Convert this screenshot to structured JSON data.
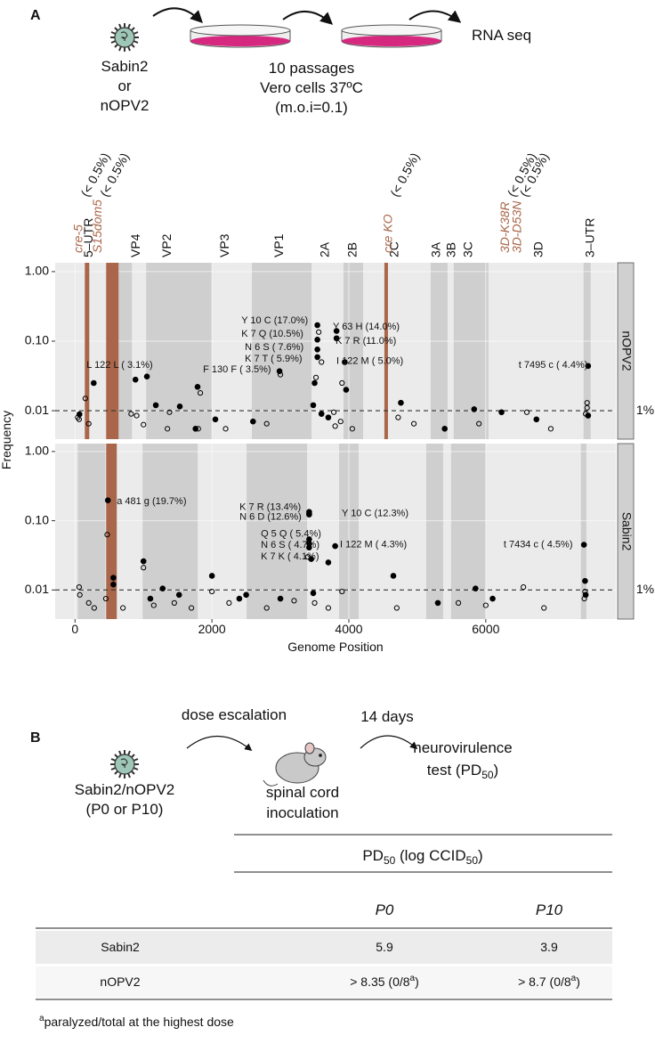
{
  "panel_a": {
    "letter": "A",
    "virus_lines": [
      "Sabin2",
      "or",
      "nOPV2"
    ],
    "step_end": "RNA seq",
    "passage_lines": [
      "10 passages",
      "Vero cells 37ºC",
      "(m.o.i=0.1)"
    ],
    "y_label": "Frequency",
    "x_label": "Genome Position",
    "gene_labels": [
      {
        "label": "5–UTR",
        "x": 208
      },
      {
        "label": "VP4",
        "x": 896
      },
      {
        "label": "VP2",
        "x": 1350
      },
      {
        "label": "VP3",
        "x": 2195
      },
      {
        "label": "VP1",
        "x": 2987
      },
      {
        "label": "2A",
        "x": 3662
      },
      {
        "label": "2B",
        "x": 4065
      },
      {
        "label": "2C",
        "x": 4675
      },
      {
        "label": "3A",
        "x": 5286
      },
      {
        "label": "3B",
        "x": 5506
      },
      {
        "label": "3C",
        "x": 5753
      },
      {
        "label": "3D",
        "x": 6779
      },
      {
        "label": "3–UTR",
        "x": 7532
      }
    ],
    "modifications": [
      {
        "label": "cre-5",
        "note": "(< 0.5%)",
        "x": 60
      },
      {
        "label": "S15dom5",
        "note": "(< 0.5%)",
        "x": 340
      },
      {
        "label": "cre KO",
        "note": "(< 0.5%)",
        "x": 4580
      },
      {
        "label": "3D-K38R",
        "note": "(< 0.5%)",
        "x": 6290
      },
      {
        "label": "3D-D53N",
        "note": "(< 0.5%)",
        "x": 6470
      }
    ]
  },
  "chart_data": [
    {
      "type": "scatter",
      "facet_label": "nOPV2",
      "log_y": true,
      "xlim": [
        -290,
        7900
      ],
      "ylim": [
        0.0039,
        1.34
      ],
      "xticks": [
        0,
        2000,
        4000,
        6000
      ],
      "yticks": [
        {
          "value": 1,
          "label": "1.00"
        },
        {
          "value": 0.1,
          "label": "0.10"
        },
        {
          "value": 0.01,
          "label": "0.01"
        }
      ],
      "threshold": {
        "value": 0.01,
        "label": "1%"
      },
      "bands": [
        [
          455,
          831
        ],
        [
          1039,
          2000
        ],
        [
          2584,
          3455
        ],
        [
          3922,
          4208
        ],
        [
          5195,
          5442
        ],
        [
          5532,
          6039
        ],
        [
          7429,
          7532
        ]
      ],
      "highlight_bands": [
        [
          143,
          208
        ],
        [
          455,
          636
        ],
        [
          4519,
          4571
        ]
      ],
      "highlight_color": "#a9664a",
      "series": [
        {
          "marker": "filled",
          "color": "#000000",
          "x": [
            65,
            273,
            883,
            1050,
            1180,
            1530,
            1790,
            1760,
            2050,
            2600,
            2987,
            3540,
            3540,
            3540,
            3540,
            3820,
            3820,
            3940,
            3960,
            3500,
            3480,
            3600,
            3700,
            4760,
            5400,
            5830,
            6230,
            6740,
            7495,
            7495
          ],
          "values": [
            0.0089,
            0.025,
            0.028,
            0.031,
            0.012,
            0.0115,
            0.022,
            0.0055,
            0.0075,
            0.007,
            0.037,
            0.17,
            0.105,
            0.076,
            0.059,
            0.14,
            0.11,
            0.05,
            0.02,
            0.025,
            0.012,
            0.009,
            0.008,
            0.013,
            0.0055,
            0.0105,
            0.0095,
            0.0075,
            0.044,
            0.0085
          ]
        },
        {
          "marker": "open",
          "color": "#000000",
          "x": [
            40,
            60,
            150,
            200,
            820,
            900,
            1000,
            1350,
            1380,
            1800,
            1830,
            2200,
            2800,
            3000,
            3520,
            3560,
            3600,
            3780,
            3800,
            3900,
            3880,
            4050,
            4720,
            4950,
            5900,
            6600,
            6950,
            7480,
            7480,
            7460
          ],
          "values": [
            0.008,
            0.0075,
            0.015,
            0.0065,
            0.009,
            0.0085,
            0.0063,
            0.0055,
            0.0095,
            0.0055,
            0.018,
            0.0055,
            0.0065,
            0.033,
            0.03,
            0.135,
            0.05,
            0.0095,
            0.006,
            0.025,
            0.007,
            0.0055,
            0.008,
            0.0065,
            0.0065,
            0.0095,
            0.0055,
            0.013,
            0.011,
            0.009
          ]
        }
      ],
      "annotations": [
        {
          "text": "Y 10 C (17.0%)",
          "x": 2430,
          "y": 0.197
        },
        {
          "text": "Y 63 H (14.0%)",
          "x": 3766,
          "y": 0.16
        },
        {
          "text": "K 7 Q (10.5%)",
          "x": 2430,
          "y": 0.127
        },
        {
          "text": "K 7 R (11.0%)",
          "x": 3805,
          "y": 0.1
        },
        {
          "text": "N 6 S ( 7.6%)",
          "x": 2481,
          "y": 0.081
        },
        {
          "text": "K 7 T ( 5.9%)",
          "x": 2481,
          "y": 0.055
        },
        {
          "text": "I 122 M ( 5.0%)",
          "x": 3818,
          "y": 0.051
        },
        {
          "text": "L 122 L ( 3.1%)",
          "x": 169,
          "y": 0.045
        },
        {
          "text": "F 130 F ( 3.5%)",
          "x": 1870,
          "y": 0.039
        },
        {
          "text": "t 7495 c ( 4.4%)",
          "x": 6480,
          "y": 0.045
        }
      ]
    },
    {
      "type": "scatter",
      "facet_label": "Sabin2",
      "log_y": true,
      "xlim": [
        -290,
        7900
      ],
      "ylim": [
        0.0038,
        1.3
      ],
      "xticks": [
        0,
        2000,
        4000,
        6000
      ],
      "show_x_tick_labels": true,
      "yticks": [
        {
          "value": 1,
          "label": "1.00"
        },
        {
          "value": 0.1,
          "label": "0.10"
        },
        {
          "value": 0.01,
          "label": "0.01"
        }
      ],
      "threshold": {
        "value": 0.01,
        "label": "1%"
      },
      "bands": [
        [
          39,
          442
        ],
        [
          987,
          1792
        ],
        [
          2506,
          3390
        ],
        [
          3857,
          4143
        ],
        [
          5130,
          5377
        ],
        [
          5493,
          6000
        ],
        [
          7390,
          7470
        ]
      ],
      "highlight_bands": [
        [
          455,
          610
        ]
      ],
      "highlight_color": "#a9664a",
      "series": [
        {
          "marker": "filled",
          "color": "#000000",
          "x": [
            480,
            560,
            560,
            1000,
            1100,
            1280,
            1520,
            2000,
            2400,
            2500,
            3000,
            3420,
            3420,
            3420,
            3420,
            3420,
            3420,
            3450,
            3480,
            3800,
            3700,
            4650,
            5300,
            5850,
            6100,
            7434,
            7450,
            7460
          ],
          "values": [
            0.197,
            0.012,
            0.015,
            0.026,
            0.0075,
            0.0105,
            0.0085,
            0.016,
            0.0075,
            0.0085,
            0.0075,
            0.134,
            0.126,
            0.123,
            0.054,
            0.047,
            0.041,
            0.028,
            0.009,
            0.043,
            0.025,
            0.016,
            0.0065,
            0.0105,
            0.0075,
            0.045,
            0.0135,
            0.0085
          ]
        },
        {
          "marker": "open",
          "color": "#000000",
          "x": [
            60,
            70,
            200,
            280,
            470,
            450,
            700,
            1000,
            1150,
            1450,
            1700,
            2000,
            2250,
            2800,
            3200,
            3400,
            3500,
            3700,
            3900,
            4700,
            5600,
            6000,
            6550,
            6850,
            7440,
            7450
          ],
          "values": [
            0.011,
            0.0085,
            0.0065,
            0.0055,
            0.063,
            0.0075,
            0.0055,
            0.021,
            0.006,
            0.0065,
            0.0055,
            0.0095,
            0.0065,
            0.0055,
            0.007,
            0.03,
            0.0065,
            0.0055,
            0.0095,
            0.0055,
            0.0065,
            0.006,
            0.011,
            0.0055,
            0.0075,
            0.0095
          ]
        }
      ],
      "annotations": [
        {
          "text": "a 481 g (19.7%)",
          "x": 610,
          "y": 0.19
        },
        {
          "text": "K 7 R (13.4%)",
          "x": 2403,
          "y": 0.156
        },
        {
          "text": "N 6 D (12.6%)",
          "x": 2403,
          "y": 0.113
        },
        {
          "text": "Y 10 C (12.3%)",
          "x": 3896,
          "y": 0.127
        },
        {
          "text": "Q 5 Q ( 5.4%)",
          "x": 2714,
          "y": 0.064
        },
        {
          "text": "N 6 S ( 4.7%)",
          "x": 2714,
          "y": 0.044
        },
        {
          "text": "I 122 M ( 4.3%)",
          "x": 3870,
          "y": 0.045
        },
        {
          "text": "K 7 K ( 4.1%)",
          "x": 2714,
          "y": 0.03
        },
        {
          "text": "t 7434 c ( 4.5%)",
          "x": 6260,
          "y": 0.045
        }
      ]
    }
  ],
  "panel_b": {
    "letter": "B",
    "virus_lines": [
      "Sabin2/nOPV2",
      "(P0 or P10)"
    ],
    "step_1": "dose escalation",
    "step_2": "14 days",
    "mouse_lines": [
      "spinal cord",
      "inoculation"
    ],
    "result_line_1": "neurovirulence",
    "result_line_2": [
      "test (PD",
      "50",
      ")"
    ],
    "table": {
      "header": [
        "PD",
        "50",
        " (log CCID",
        "50",
        ")"
      ],
      "columns": [
        "P0",
        "P10"
      ],
      "rows": [
        [
          "Sabin2",
          5.9,
          3.9
        ],
        [
          "nOPV2",
          [
            "> 8.35 (0/8",
            "a",
            ")"
          ],
          [
            "> 8.7 (0/8",
            "a",
            ")"
          ]
        ]
      ],
      "footnote": [
        "a",
        "paralyzed/total at the highest dose"
      ]
    }
  }
}
